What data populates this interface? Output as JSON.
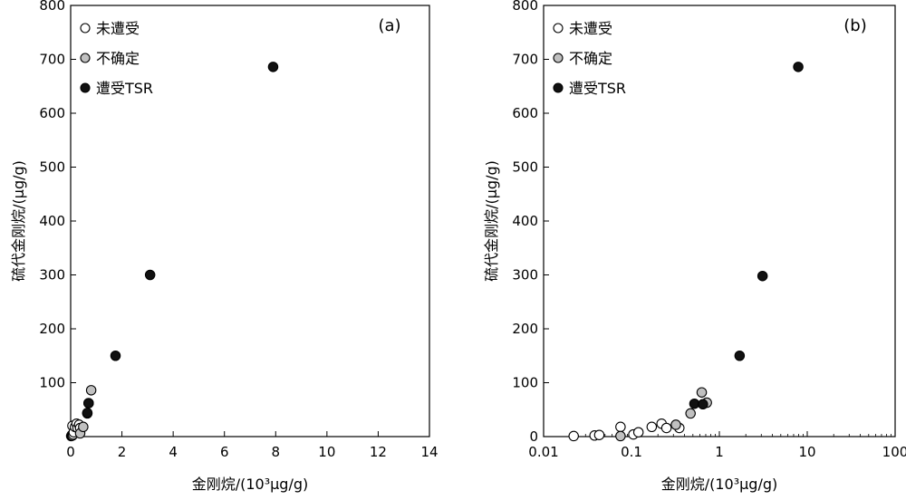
{
  "legend": {
    "unaffected": "未遭受",
    "uncertain": "不确定",
    "tsr": "遭受TSR"
  },
  "colors": {
    "unaffected": "#ffffff",
    "uncertain": "#c0c0c0",
    "tsr": "#111111",
    "stroke": "#000000"
  },
  "chart_data": [
    {
      "type": "scatter",
      "panel_label": "(a)",
      "xlabel": "金刚烷/(10³μg/g)",
      "ylabel": "硫代金刚烷/(μg/g)",
      "xscale": "linear",
      "xlim": [
        0,
        14
      ],
      "ylim": [
        0,
        800
      ],
      "xticks": [
        "0",
        "2",
        "4",
        "6",
        "8",
        "10",
        "12",
        "14"
      ],
      "yticks": [
        "100",
        "200",
        "300",
        "400",
        "500",
        "600",
        "700",
        "800"
      ],
      "legend_position": "top-left",
      "series": [
        {
          "key": "unaffected",
          "name": "未遭受",
          "x": [
            0.02,
            0.04,
            0.045,
            0.07,
            0.07,
            0.1,
            0.12,
            0.17,
            0.23,
            0.27,
            0.33,
            0.37
          ],
          "y": [
            1,
            2,
            3,
            20,
            2,
            4,
            8,
            18,
            24,
            16,
            22,
            16
          ]
        },
        {
          "key": "uncertain",
          "name": "不确定",
          "x": [
            0.37,
            0.49,
            0.65,
            0.7,
            0.8
          ],
          "y": [
            6,
            18,
            43,
            62,
            86
          ]
        },
        {
          "key": "tsr",
          "name": "遭受TSR",
          "x": [
            0.65,
            0.7,
            1.75,
            3.1,
            7.9
          ],
          "y": [
            44,
            62,
            150,
            300,
            686
          ]
        }
      ]
    },
    {
      "type": "scatter",
      "panel_label": "(b)",
      "xlabel": "金刚烷/(10³μg/g)",
      "ylabel": "硫代金刚烷/(μg/g)",
      "xscale": "log",
      "xlim": [
        0.01,
        100
      ],
      "ylim": [
        0,
        800
      ],
      "xticks": [
        "0.01",
        "0.1",
        "1",
        "10",
        "100"
      ],
      "yticks": [
        "0",
        "100",
        "200",
        "300",
        "400",
        "500",
        "600",
        "700",
        "800"
      ],
      "legend_position": "top-left",
      "series": [
        {
          "key": "unaffected",
          "name": "未遭受",
          "x": [
            0.022,
            0.038,
            0.043,
            0.075,
            0.105,
            0.12,
            0.17,
            0.22,
            0.25,
            0.35
          ],
          "y": [
            1,
            2,
            3,
            18,
            4,
            8,
            18,
            24,
            16,
            16
          ]
        },
        {
          "key": "uncertain",
          "name": "不确定",
          "x": [
            0.075,
            0.32,
            0.47,
            0.63,
            0.72
          ],
          "y": [
            1,
            22,
            43,
            82,
            63
          ]
        },
        {
          "key": "tsr",
          "name": "遭受TSR",
          "x": [
            0.52,
            0.65,
            1.7,
            3.1,
            7.9
          ],
          "y": [
            61,
            60,
            150,
            298,
            686
          ]
        }
      ]
    }
  ]
}
